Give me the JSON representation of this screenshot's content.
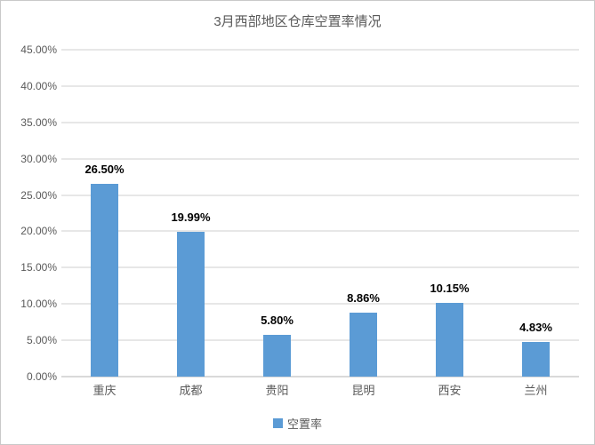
{
  "window": {
    "background": "#FFFFFF",
    "border_color": "#C9C9C9"
  },
  "chart_data": {
    "type": "bar",
    "title": "3月西部地区仓库空置率情况",
    "categories": [
      "重庆",
      "成都",
      "贵阳",
      "昆明",
      "西安",
      "兰州"
    ],
    "series": [
      {
        "name": "空置率",
        "values": [
          26.5,
          19.99,
          5.8,
          8.86,
          10.15,
          4.83
        ]
      }
    ],
    "data_labels": [
      "26.50%",
      "19.99%",
      "5.80%",
      "8.86%",
      "10.15%",
      "4.83%"
    ],
    "y_ticks": [
      "45.00%",
      "40.00%",
      "35.00%",
      "30.00%",
      "25.00%",
      "20.00%",
      "15.00%",
      "10.00%",
      "5.00%",
      "0.00%"
    ],
    "ylim": [
      0,
      45
    ],
    "y_tick_step": 5,
    "grid": true,
    "xlabel": "",
    "ylabel": "",
    "legend": {
      "position": "bottom",
      "entries": [
        "空置率"
      ]
    },
    "colors": {
      "bar": "#5B9BD5",
      "gridline": "#E7E7E7",
      "axis_line": "#D9D9D9",
      "axis_text": "#595959",
      "title_text": "#595959",
      "data_label_text": "#000000"
    }
  }
}
